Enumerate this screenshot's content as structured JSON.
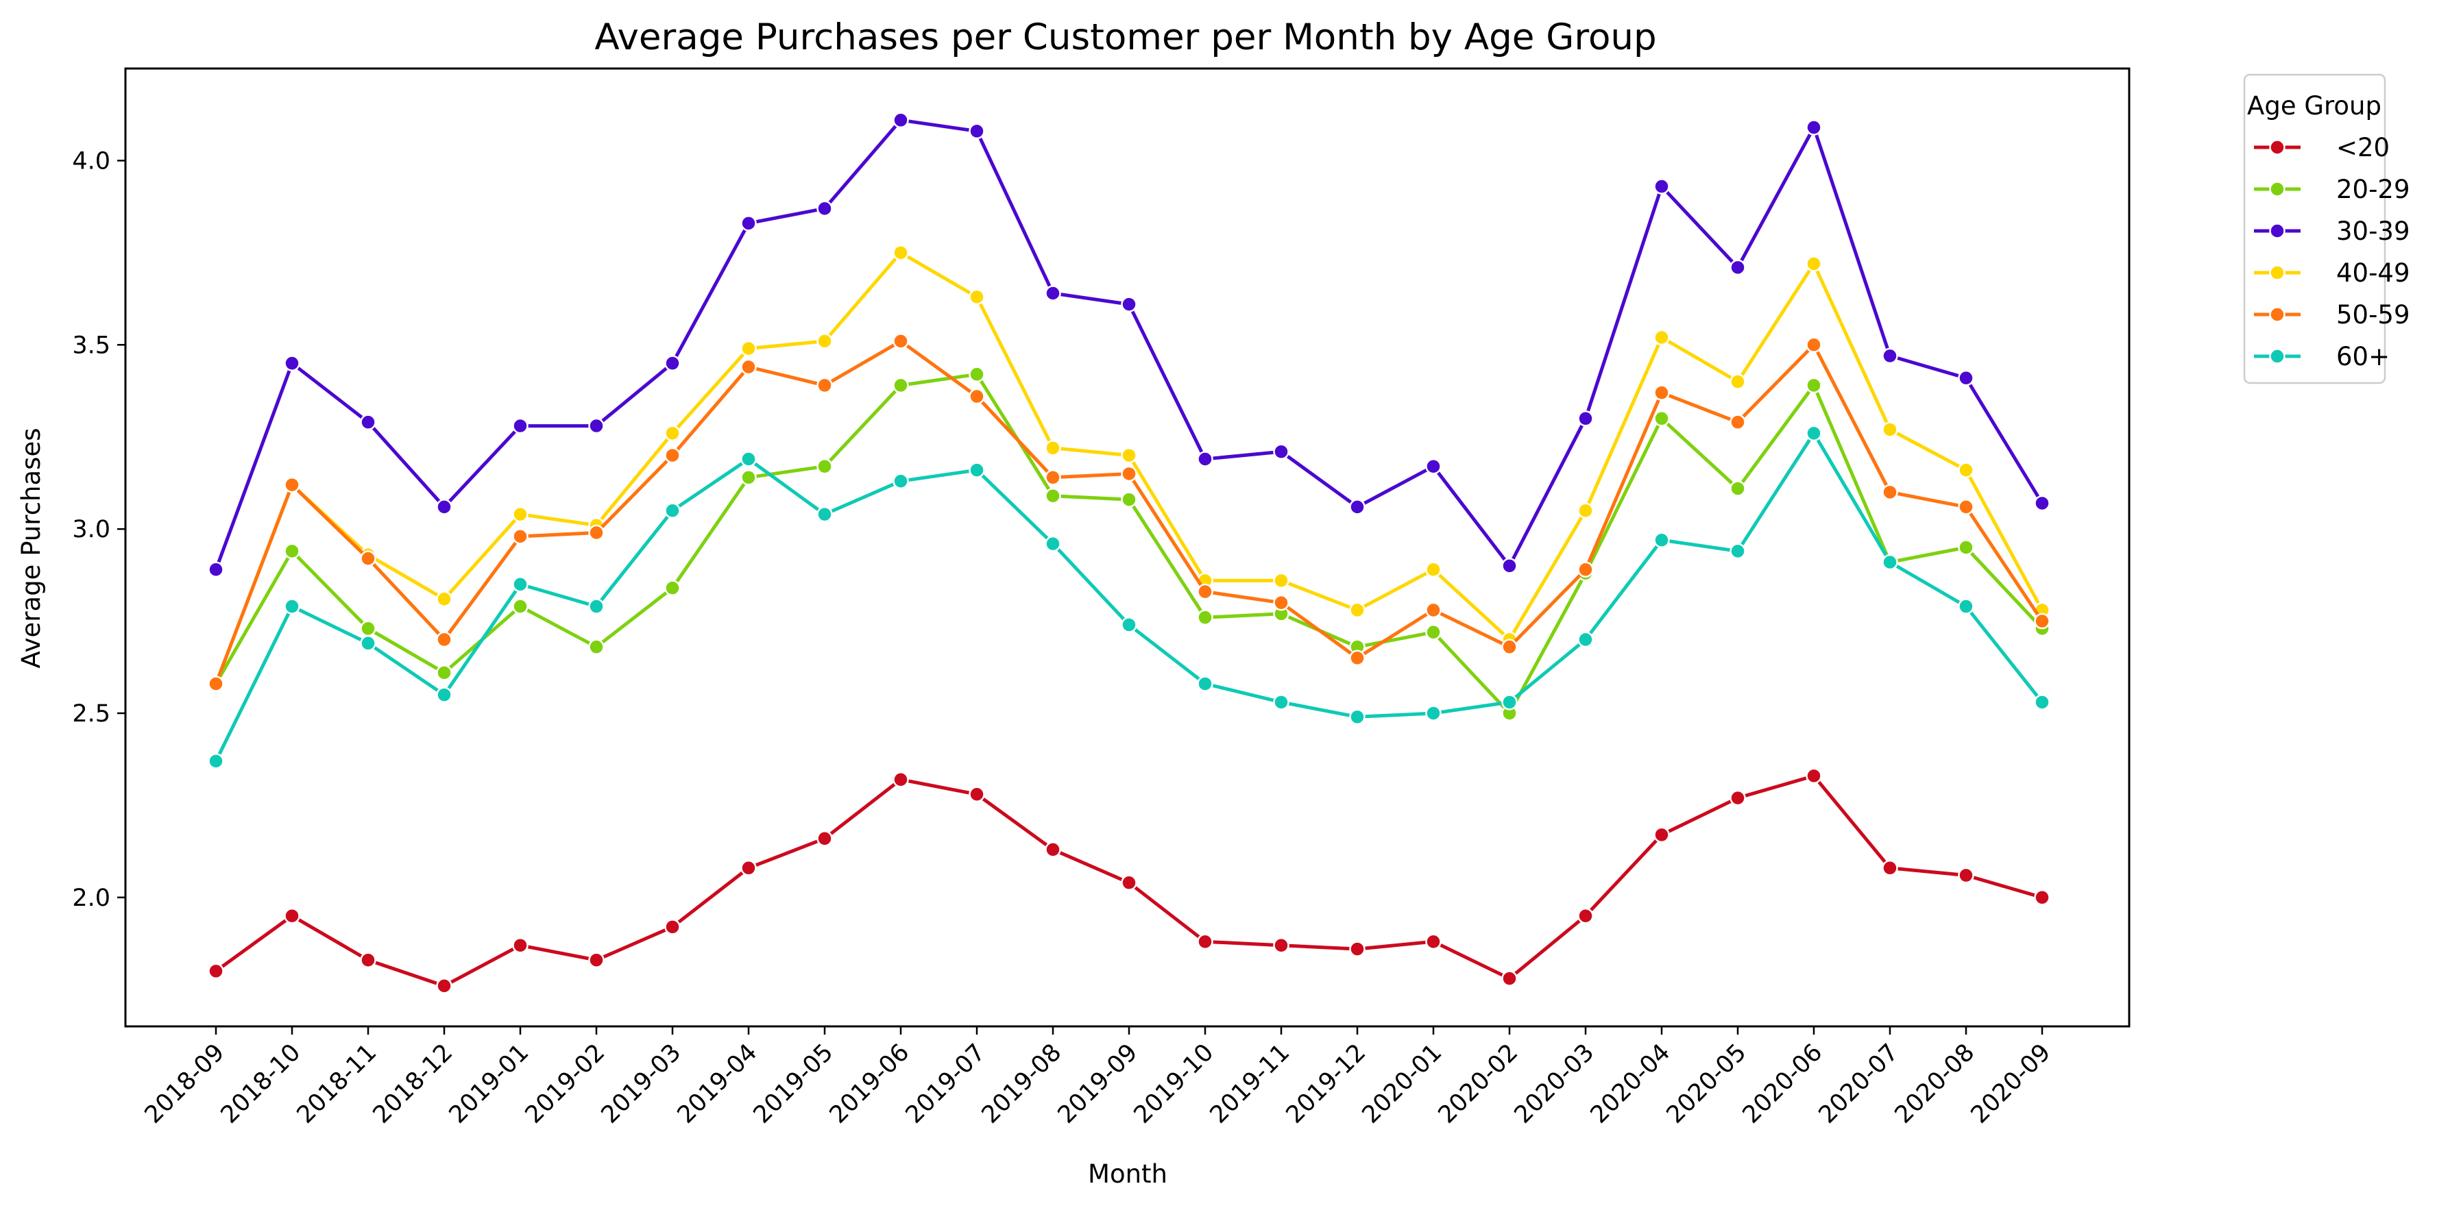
{
  "chart_data": {
    "type": "line",
    "title": "Average Purchases per Customer per Month by Age Group",
    "xlabel": "Month",
    "ylabel": "Average Purchases",
    "categories": [
      "2018-09",
      "2018-10",
      "2018-11",
      "2018-12",
      "2019-01",
      "2019-02",
      "2019-03",
      "2019-04",
      "2019-05",
      "2019-06",
      "2019-07",
      "2019-08",
      "2019-09",
      "2019-10",
      "2019-11",
      "2019-12",
      "2020-01",
      "2020-02",
      "2020-03",
      "2020-04",
      "2020-05",
      "2020-06",
      "2020-07",
      "2020-08",
      "2020-09"
    ],
    "ylim": [
      1.65,
      4.25
    ],
    "yticks": [
      "2.0",
      "2.5",
      "3.0",
      "3.5",
      "4.0"
    ],
    "grid": false,
    "legend": {
      "title": "Age Group",
      "position": "outside-top-right"
    },
    "series": [
      {
        "name": "<20",
        "color": "#cc0a1e",
        "values": [
          1.8,
          1.95,
          1.83,
          1.76,
          1.87,
          1.83,
          1.92,
          2.08,
          2.16,
          2.32,
          2.28,
          2.13,
          2.04,
          1.88,
          1.87,
          1.86,
          1.88,
          1.78,
          1.95,
          2.17,
          2.27,
          2.33,
          2.08,
          2.06,
          2.0
        ]
      },
      {
        "name": "20-29",
        "color": "#7ed10f",
        "values": [
          2.58,
          2.94,
          2.73,
          2.61,
          2.79,
          2.68,
          2.84,
          3.14,
          3.17,
          3.39,
          3.42,
          3.09,
          3.08,
          2.76,
          2.77,
          2.68,
          2.72,
          2.5,
          2.88,
          3.3,
          3.11,
          3.39,
          2.91,
          2.95,
          2.73
        ]
      },
      {
        "name": "30-39",
        "color": "#4b08d0",
        "values": [
          2.89,
          3.45,
          3.29,
          3.06,
          3.28,
          3.28,
          3.45,
          3.83,
          3.87,
          4.11,
          4.08,
          3.64,
          3.61,
          3.19,
          3.21,
          3.06,
          3.17,
          2.9,
          3.3,
          3.93,
          3.71,
          4.09,
          3.47,
          3.41,
          3.07
        ]
      },
      {
        "name": "40-49",
        "color": "#ffd700",
        "values": [
          2.58,
          3.12,
          2.93,
          2.81,
          3.04,
          3.01,
          3.26,
          3.49,
          3.51,
          3.75,
          3.63,
          3.22,
          3.2,
          2.86,
          2.86,
          2.78,
          2.89,
          2.7,
          3.05,
          3.52,
          3.4,
          3.72,
          3.27,
          3.16,
          2.78
        ]
      },
      {
        "name": "50-59",
        "color": "#ff7410",
        "values": [
          2.58,
          3.12,
          2.92,
          2.7,
          2.98,
          2.99,
          3.2,
          3.44,
          3.39,
          3.51,
          3.36,
          3.14,
          3.15,
          2.83,
          2.8,
          2.65,
          2.78,
          2.68,
          2.89,
          3.37,
          3.29,
          3.5,
          3.1,
          3.06,
          2.75
        ]
      },
      {
        "name": "60+",
        "color": "#0ecab5",
        "values": [
          2.37,
          2.79,
          2.69,
          2.55,
          2.85,
          2.79,
          3.05,
          3.19,
          3.04,
          3.13,
          3.16,
          2.96,
          2.74,
          2.58,
          2.53,
          2.49,
          2.5,
          2.53,
          2.7,
          2.97,
          2.94,
          3.26,
          2.91,
          2.79,
          2.53
        ]
      }
    ]
  }
}
